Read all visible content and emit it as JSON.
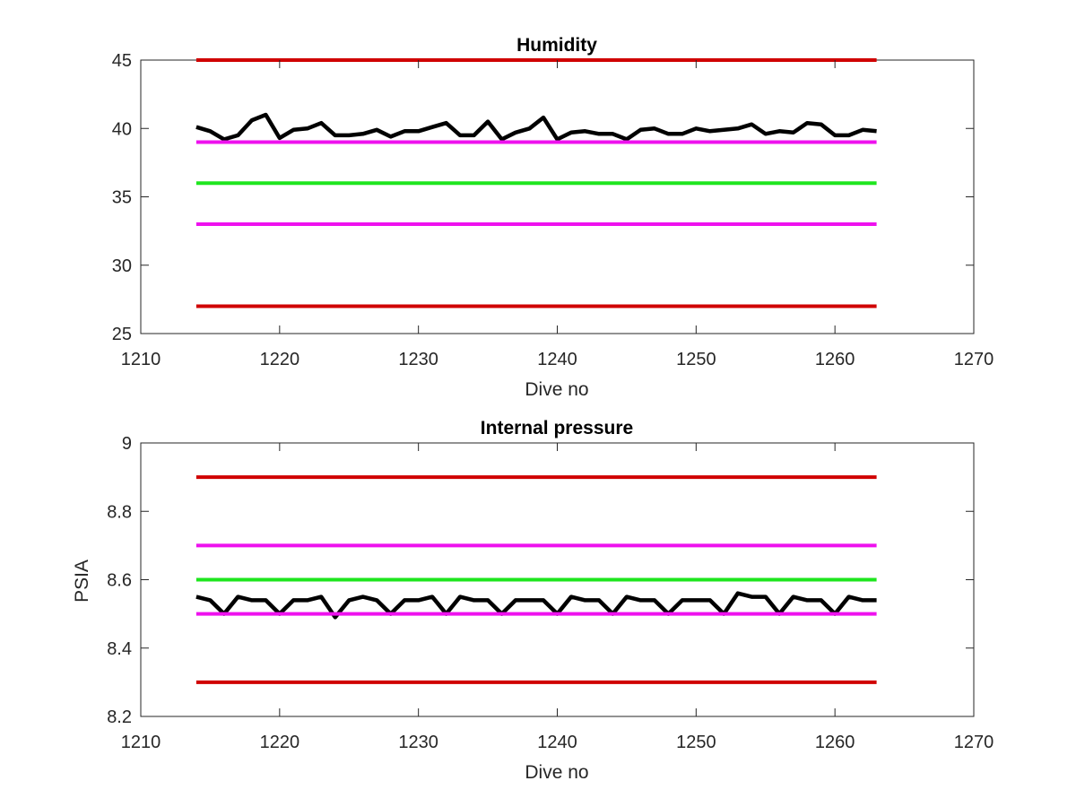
{
  "chart_data": [
    {
      "type": "line",
      "title": "Humidity",
      "xlabel": "Dive no",
      "ylabel": "",
      "xlim": [
        1210,
        1270
      ],
      "ylim": [
        25,
        45
      ],
      "xticks": [
        1210,
        1220,
        1230,
        1240,
        1250,
        1260,
        1270
      ],
      "yticks": [
        25,
        30,
        35,
        40,
        45
      ],
      "grid": false,
      "series": [
        {
          "color": "#000000",
          "x_start": 1214,
          "x_step": 1,
          "values": [
            40.1,
            39.8,
            39.2,
            39.5,
            40.6,
            41.0,
            39.3,
            39.9,
            40.0,
            40.4,
            39.5,
            39.5,
            39.6,
            39.9,
            39.4,
            39.8,
            39.8,
            40.1,
            40.4,
            39.5,
            39.5,
            40.5,
            39.2,
            39.7,
            40.0,
            40.8,
            39.2,
            39.7,
            39.8,
            39.6,
            39.6,
            39.2,
            39.9,
            40.0,
            39.6,
            39.6,
            40.0,
            39.8,
            39.9,
            40.0,
            40.3,
            39.6,
            39.8,
            39.7,
            40.4,
            40.3,
            39.5,
            39.5,
            39.9,
            39.8
          ]
        },
        {
          "color": "#d00000",
          "x": [
            1214,
            1263
          ],
          "values": [
            45,
            45
          ]
        },
        {
          "color": "#ee11ee",
          "x": [
            1214,
            1263
          ],
          "values": [
            39,
            39
          ]
        },
        {
          "color": "#1ee61e",
          "x": [
            1214,
            1263
          ],
          "values": [
            36,
            36
          ]
        },
        {
          "color": "#ee11ee",
          "x": [
            1214,
            1263
          ],
          "values": [
            33,
            33
          ]
        },
        {
          "color": "#d00000",
          "x": [
            1214,
            1263
          ],
          "values": [
            27,
            27
          ]
        }
      ]
    },
    {
      "type": "line",
      "title": "Internal pressure",
      "xlabel": "Dive no",
      "ylabel": "PSIA",
      "xlim": [
        1210,
        1270
      ],
      "ylim": [
        8.2,
        9
      ],
      "xticks": [
        1210,
        1220,
        1230,
        1240,
        1250,
        1260,
        1270
      ],
      "yticks": [
        8.2,
        8.4,
        8.6,
        8.8,
        9
      ],
      "grid": false,
      "series": [
        {
          "color": "#000000",
          "x_start": 1214,
          "x_step": 1,
          "values": [
            8.55,
            8.54,
            8.5,
            8.55,
            8.54,
            8.54,
            8.5,
            8.54,
            8.54,
            8.55,
            8.49,
            8.54,
            8.55,
            8.54,
            8.5,
            8.54,
            8.54,
            8.55,
            8.5,
            8.55,
            8.54,
            8.54,
            8.5,
            8.54,
            8.54,
            8.54,
            8.5,
            8.55,
            8.54,
            8.54,
            8.5,
            8.55,
            8.54,
            8.54,
            8.5,
            8.54,
            8.54,
            8.54,
            8.5,
            8.56,
            8.55,
            8.55,
            8.5,
            8.55,
            8.54,
            8.54,
            8.5,
            8.55,
            8.54,
            8.54
          ]
        },
        {
          "color": "#d00000",
          "x": [
            1214,
            1263
          ],
          "values": [
            8.9,
            8.9
          ]
        },
        {
          "color": "#ee11ee",
          "x": [
            1214,
            1263
          ],
          "values": [
            8.7,
            8.7
          ]
        },
        {
          "color": "#1ee61e",
          "x": [
            1214,
            1263
          ],
          "values": [
            8.6,
            8.6
          ]
        },
        {
          "color": "#ee11ee",
          "x": [
            1214,
            1263
          ],
          "values": [
            8.5,
            8.5
          ]
        },
        {
          "color": "#d00000",
          "x": [
            1214,
            1263
          ],
          "values": [
            8.3,
            8.3
          ]
        }
      ]
    }
  ]
}
